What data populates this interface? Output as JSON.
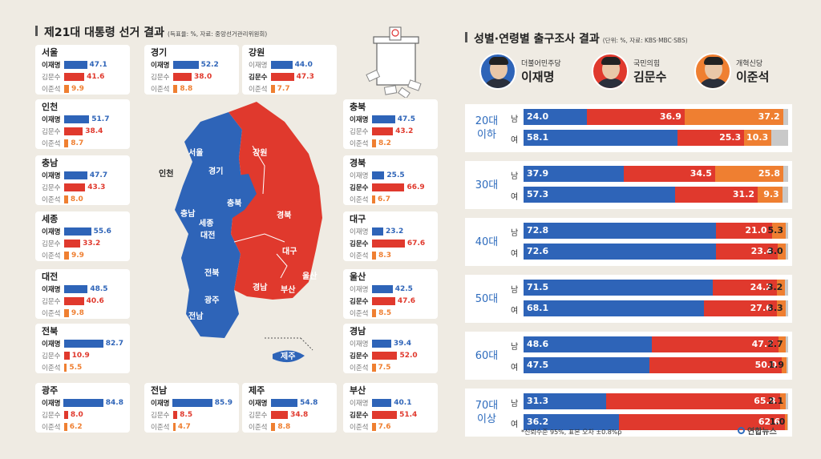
{
  "left_title": "제21대 대통령 선거 결과",
  "left_sub": "(득표율: %, 자료: 중앙선거관리위원회)",
  "right_title": "성별·연령별 출구조사 결과",
  "right_sub": "(단위: %, 자료: KBS·MBC·SBS)",
  "colors": {
    "lee": "#2e64b8",
    "kim": "#e0392d",
    "lee_jun": "#ef7f31",
    "gray": "#c9c9c9"
  },
  "candidates": [
    {
      "party": "더불어민주당",
      "name": "이재명",
      "color": "#2e64b8"
    },
    {
      "party": "국민의힘",
      "name": "김문수",
      "color": "#e0392d"
    },
    {
      "party": "개혁신당",
      "name": "이준석",
      "color": "#ef7f31"
    }
  ],
  "map_labels": [
    "서울",
    "경기",
    "인천",
    "강원",
    "충북",
    "충남",
    "세종",
    "대전",
    "경북",
    "대구",
    "전북",
    "울산",
    "경남",
    "부산",
    "광주",
    "전남",
    "제주"
  ],
  "regions": [
    {
      "name": "서울",
      "winner": 0,
      "values": [
        47.1,
        41.6,
        9.9
      ]
    },
    {
      "name": "경기",
      "winner": 0,
      "values": [
        52.2,
        38.0,
        8.8
      ]
    },
    {
      "name": "강원",
      "winner": 1,
      "values": [
        44.0,
        47.3,
        7.7
      ]
    },
    {
      "name": "인천",
      "winner": 0,
      "values": [
        51.7,
        38.4,
        8.7
      ]
    },
    {
      "name": "충북",
      "winner": 0,
      "values": [
        47.5,
        43.2,
        8.2
      ]
    },
    {
      "name": "충남",
      "winner": 0,
      "values": [
        47.7,
        43.3,
        8.0
      ]
    },
    {
      "name": "경북",
      "winner": 1,
      "values": [
        25.5,
        66.9,
        6.7
      ]
    },
    {
      "name": "세종",
      "winner": 0,
      "values": [
        55.6,
        33.2,
        9.9
      ]
    },
    {
      "name": "대구",
      "winner": 1,
      "values": [
        23.2,
        67.6,
        8.3
      ]
    },
    {
      "name": "대전",
      "winner": 0,
      "values": [
        48.5,
        40.6,
        9.8
      ]
    },
    {
      "name": "울산",
      "winner": 1,
      "values": [
        42.5,
        47.6,
        8.5
      ]
    },
    {
      "name": "전북",
      "winner": 0,
      "values": [
        82.7,
        10.9,
        5.5
      ]
    },
    {
      "name": "경남",
      "winner": 1,
      "values": [
        39.4,
        52.0,
        7.5
      ]
    },
    {
      "name": "광주",
      "winner": 0,
      "values": [
        84.8,
        8.0,
        6.2
      ]
    },
    {
      "name": "전남",
      "winner": 0,
      "values": [
        85.9,
        8.5,
        4.7
      ]
    },
    {
      "name": "제주",
      "winner": 0,
      "values": [
        54.8,
        34.8,
        8.8
      ]
    },
    {
      "name": "부산",
      "winner": 1,
      "values": [
        40.1,
        51.4,
        7.6
      ]
    }
  ],
  "chart_data": {
    "type": "bar",
    "stacked": true,
    "orientation": "horizontal",
    "title": "성별·연령별 출구조사 결과",
    "series_names": [
      "이재명",
      "김문수",
      "이준석"
    ],
    "groups": [
      {
        "label": [
          "20대",
          "이하"
        ],
        "rows": [
          {
            "sex": "남",
            "values": [
              24.0,
              36.9,
              37.2
            ]
          },
          {
            "sex": "여",
            "values": [
              58.1,
              25.3,
              10.3
            ]
          }
        ]
      },
      {
        "label": [
          "30대"
        ],
        "rows": [
          {
            "sex": "남",
            "values": [
              37.9,
              34.5,
              25.8
            ]
          },
          {
            "sex": "여",
            "values": [
              57.3,
              31.2,
              9.3
            ]
          }
        ]
      },
      {
        "label": [
          "40대"
        ],
        "rows": [
          {
            "sex": "남",
            "values": [
              72.8,
              21.0,
              5.3
            ]
          },
          {
            "sex": "여",
            "values": [
              72.6,
              23.4,
              3.0
            ]
          }
        ]
      },
      {
        "label": [
          "50대"
        ],
        "rows": [
          {
            "sex": "남",
            "values": [
              71.5,
              24.2,
              3.2
            ]
          },
          {
            "sex": "여",
            "values": [
              68.1,
              27.6,
              3.3
            ]
          }
        ]
      },
      {
        "label": [
          "60대"
        ],
        "rows": [
          {
            "sex": "남",
            "values": [
              48.6,
              47.7,
              2.7
            ]
          },
          {
            "sex": "여",
            "values": [
              47.5,
              50.0,
              1.9
            ]
          }
        ]
      },
      {
        "label": [
          "70대",
          "이상"
        ],
        "rows": [
          {
            "sex": "남",
            "values": [
              31.3,
              65.8,
              2.1
            ]
          },
          {
            "sex": "여",
            "values": [
              36.2,
              62.6,
              1.0
            ]
          }
        ]
      }
    ],
    "xlim": [
      0,
      100
    ]
  },
  "note": "*신뢰수준 95%, 표본 오차 ±0.8%p",
  "logo": "연합뉴스"
}
